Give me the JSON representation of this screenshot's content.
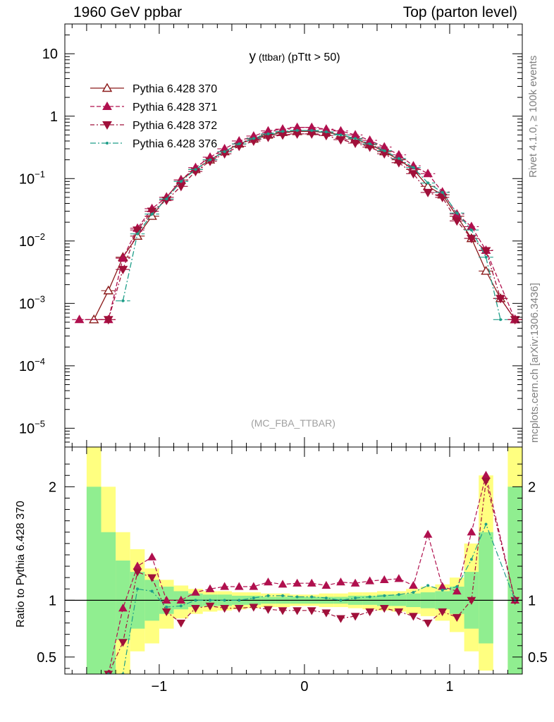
{
  "header": {
    "left": "1960 GeV ppbar",
    "right": "Top (parton level)"
  },
  "side_labels": {
    "rivet": "Rivet 4.1.0, ≥ 100k events",
    "mcplots": "mcplots.cern.ch [arXiv:1306.3436]"
  },
  "chart_data": {
    "type": "line",
    "title": "y (ttbar) (pTtt > 50)",
    "title_main": "y",
    "title_small": "(ttbar)",
    "title_rest": "(pTtt > 50)",
    "watermark": "(MC_FBA_TTBAR)",
    "xlim": [
      -1.65,
      1.5
    ],
    "ylim": [
      5e-06,
      30
    ],
    "yscale": "log",
    "x_ticks": [
      -1,
      0,
      1
    ],
    "x_tick_labels": [
      "−1",
      "0",
      "1"
    ],
    "y_ticks": [
      {
        "value": 10,
        "base": "10",
        "exp": ""
      },
      {
        "value": 1,
        "base": "1",
        "exp": ""
      },
      {
        "value": 0.1,
        "base": "10",
        "exp": "−1"
      },
      {
        "value": 0.01,
        "base": "10",
        "exp": "−2"
      },
      {
        "value": 0.001,
        "base": "10",
        "exp": "−3"
      },
      {
        "value": 0.0001,
        "base": "10",
        "exp": "−4"
      },
      {
        "value": 1e-05,
        "base": "10",
        "exp": "−5"
      }
    ],
    "x": [
      -1.55,
      -1.45,
      -1.35,
      -1.25,
      -1.15,
      -1.05,
      -0.95,
      -0.85,
      -0.75,
      -0.65,
      -0.55,
      -0.45,
      -0.35,
      -0.25,
      -0.15,
      -0.05,
      0.05,
      0.15,
      0.25,
      0.35,
      0.45,
      0.55,
      0.65,
      0.75,
      0.85,
      0.95,
      1.05,
      1.15,
      1.25,
      1.35,
      1.45
    ],
    "series": [
      {
        "name": "Pythia 6.428 370",
        "color": "#8b1a1a",
        "dash": "",
        "marker": "triangle-open",
        "values": [
          null,
          0.00055,
          0.0016,
          0.0055,
          0.012,
          0.025,
          0.05,
          0.095,
          0.14,
          0.2,
          0.27,
          0.36,
          0.43,
          0.5,
          0.55,
          0.57,
          0.57,
          0.55,
          0.5,
          0.43,
          0.35,
          0.27,
          0.2,
          0.14,
          0.075,
          0.055,
          0.025,
          0.011,
          0.0033,
          0.0012,
          0.00055
        ]
      },
      {
        "name": "Pythia 6.428 371",
        "color": "#b0104e",
        "dash": "6,3",
        "marker": "triangle-up",
        "values": [
          0.00055,
          null,
          0.00055,
          0.0053,
          0.016,
          0.033,
          0.05,
          0.095,
          0.15,
          0.22,
          0.3,
          0.4,
          0.48,
          0.58,
          0.62,
          0.66,
          0.66,
          0.62,
          0.58,
          0.5,
          0.41,
          0.32,
          0.24,
          0.16,
          0.12,
          0.061,
          0.027,
          0.017,
          0.0071,
          null,
          0.00055
        ]
      },
      {
        "name": "Pythia 6.428 372",
        "color": "#a0103a",
        "dash": "6,3,2,3",
        "marker": "triangle-down",
        "values": [
          null,
          null,
          0.00055,
          0.0035,
          0.015,
          0.03,
          0.045,
          0.075,
          0.13,
          0.19,
          0.25,
          0.33,
          0.4,
          0.46,
          0.5,
          0.52,
          0.52,
          0.49,
          0.42,
          0.37,
          0.32,
          0.25,
          0.18,
          0.12,
          0.06,
          0.05,
          0.021,
          0.011,
          0.007,
          0.0012,
          0.00055
        ]
      },
      {
        "name": "Pythia 6.428 376",
        "color": "#1f9e89",
        "dash": "8,3,2,3",
        "marker": "dot",
        "values": [
          null,
          null,
          null,
          0.0011,
          0.013,
          0.027,
          0.047,
          0.09,
          0.14,
          0.2,
          0.27,
          0.36,
          0.44,
          0.52,
          0.57,
          0.59,
          0.59,
          0.56,
          0.5,
          0.44,
          0.36,
          0.28,
          0.21,
          0.15,
          0.085,
          0.06,
          0.028,
          0.015,
          0.0055,
          0.00055,
          null
        ]
      }
    ],
    "ratio": {
      "ylabel": "Ratio to Pythia 6.428 370",
      "ylim": [
        0.35,
        2.35
      ],
      "y_ticks": [
        {
          "value": 0.5,
          "label": "0.5"
        },
        {
          "value": 1,
          "label": "1"
        },
        {
          "value": 2,
          "label": "2"
        }
      ],
      "band_inner": [
        null,
        2.0,
        1.6,
        1.35,
        1.25,
        1.18,
        1.12,
        1.08,
        1.06,
        1.05,
        1.05,
        1.04,
        1.04,
        1.03,
        1.03,
        1.03,
        1.03,
        1.03,
        1.03,
        1.04,
        1.04,
        1.05,
        1.05,
        1.06,
        1.07,
        1.08,
        1.12,
        1.25,
        1.6,
        null,
        2.0
      ],
      "band_inner_low": [
        null,
        0.35,
        0.35,
        0.65,
        0.75,
        0.82,
        0.88,
        0.92,
        0.94,
        0.95,
        0.95,
        0.96,
        0.96,
        0.97,
        0.97,
        0.97,
        0.97,
        0.97,
        0.97,
        0.96,
        0.96,
        0.95,
        0.95,
        0.94,
        0.93,
        0.92,
        0.88,
        0.75,
        0.62,
        null,
        0.35
      ],
      "band_outer": [
        null,
        2.35,
        2.0,
        1.6,
        1.45,
        1.28,
        1.18,
        1.13,
        1.1,
        1.08,
        1.08,
        1.07,
        1.07,
        1.06,
        1.06,
        1.05,
        1.05,
        1.06,
        1.06,
        1.07,
        1.07,
        1.08,
        1.08,
        1.1,
        1.12,
        1.14,
        1.2,
        1.5,
        2.1,
        null,
        2.35
      ],
      "band_outer_low": [
        null,
        0.35,
        0.35,
        0.35,
        0.55,
        0.62,
        0.75,
        0.84,
        0.88,
        0.9,
        0.91,
        0.92,
        0.93,
        0.94,
        0.94,
        0.95,
        0.95,
        0.94,
        0.94,
        0.93,
        0.92,
        0.91,
        0.9,
        0.88,
        0.86,
        0.82,
        0.72,
        0.55,
        0.38,
        null,
        0.35
      ],
      "series": [
        {
          "name": "Pythia 6.428 371",
          "values": [
            null,
            null,
            0.35,
            0.93,
            1.3,
            1.38,
            1.0,
            1.0,
            1.07,
            1.1,
            1.12,
            1.12,
            1.12,
            1.16,
            1.14,
            1.15,
            1.15,
            1.13,
            1.16,
            1.15,
            1.17,
            1.18,
            1.19,
            1.13,
            1.58,
            1.12,
            1.08,
            1.6,
            2.1,
            null,
            1.0
          ]
        },
        {
          "name": "Pythia 6.428 372",
          "values": [
            null,
            null,
            0.35,
            0.63,
            1.25,
            1.2,
            0.9,
            0.8,
            0.93,
            0.95,
            0.93,
            0.93,
            0.94,
            0.92,
            0.91,
            0.91,
            0.91,
            0.89,
            0.84,
            0.86,
            0.9,
            0.93,
            0.9,
            0.86,
            0.8,
            0.9,
            0.85,
            1.0,
            2.05,
            null,
            1.0
          ]
        },
        {
          "name": "Pythia 6.428 376",
          "values": [
            null,
            null,
            0.35,
            0.35,
            1.1,
            1.08,
            0.94,
            0.95,
            1.0,
            1.0,
            1.0,
            1.0,
            1.02,
            1.04,
            1.04,
            1.03,
            1.03,
            1.02,
            1.0,
            1.02,
            1.03,
            1.04,
            1.05,
            1.07,
            1.13,
            1.09,
            1.12,
            1.36,
            1.67,
            null,
            1.0
          ]
        }
      ]
    }
  }
}
